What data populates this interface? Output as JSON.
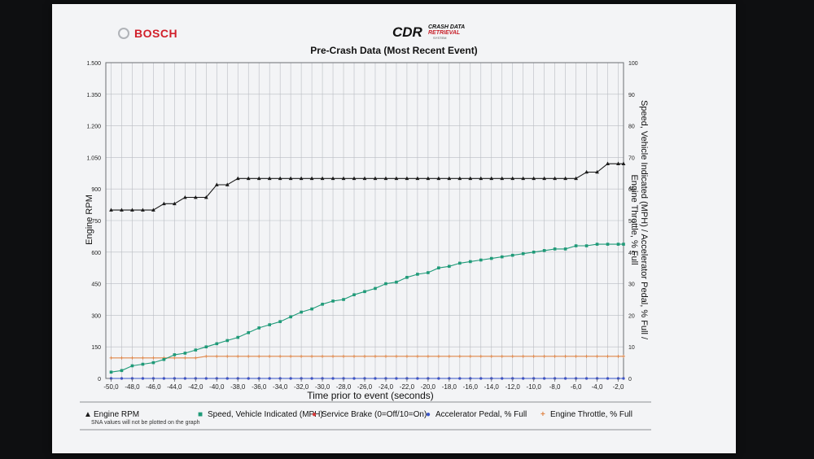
{
  "branding": {
    "bosch": "BOSCH",
    "cdr_logo": "CDR",
    "cdr_line1": "CRASH DATA",
    "cdr_line2": "RETRIEVAL",
    "cdr_line3": "SYSTEM"
  },
  "footnote": "SNA values will not be plotted on the graph",
  "colors": {
    "rpm": "#1a1a1a",
    "speed": "#1f9a78",
    "brake": "#d63a3a",
    "accel": "#3a56c8",
    "throttle": "#e0874a",
    "grid": "#b9bcc2",
    "paper": "#f3f4f6"
  },
  "chart_data": {
    "type": "line",
    "title": "Pre-Crash Data (Most Recent Event)",
    "xlabel": "Time prior to event (seconds)",
    "ylabel_left": "Engine RPM",
    "ylabel_right_line1": "Speed, Vehicle Indicated (MPH) / Accelerator Pedal, % Full /",
    "ylabel_right_line2": "Engine Throttle, % Full",
    "xlim": [
      -50.5,
      -1.5
    ],
    "ylim_left": [
      0,
      1500
    ],
    "ylim_right": [
      0,
      100
    ],
    "x_ticks": [
      -50,
      -48,
      -46,
      -44,
      -42,
      -40,
      -38,
      -36,
      -34,
      -32,
      -30,
      -28,
      -26,
      -24,
      -22,
      -20,
      -18,
      -16,
      -14,
      -12,
      -10,
      -8,
      -6,
      -4,
      -2
    ],
    "x_tick_labels": [
      "-50,0",
      "-48,0",
      "-46,0",
      "-44,0",
      "-42,0",
      "-40,0",
      "-38,0",
      "-36,0",
      "-34,0",
      "-32,0",
      "-30,0",
      "-28,0",
      "-26,0",
      "-24,0",
      "-22,0",
      "-20,0",
      "-18,0",
      "-16,0",
      "-14,0",
      "-12,0",
      "-10,0",
      "-8,0",
      "-6,0",
      "-4,0",
      "-2,0"
    ],
    "y_left_ticks": [
      0,
      150,
      300,
      450,
      600,
      750,
      900,
      1050,
      1200,
      1350,
      1500
    ],
    "y_left_tick_labels": [
      "0",
      "150",
      "300",
      "450",
      "600",
      "750",
      "900",
      "1.050",
      "1.200",
      "1.350",
      "1.500"
    ],
    "y_right_ticks": [
      0,
      10,
      20,
      30,
      40,
      50,
      60,
      70,
      80,
      90,
      100
    ],
    "y_right_tick_labels": [
      "0",
      "10",
      "20",
      "30",
      "40",
      "50",
      "60",
      "70",
      "80",
      "90",
      "100"
    ],
    "grid": true,
    "legend_position": "bottom",
    "x": [
      -50,
      -49,
      -48,
      -47,
      -46,
      -45,
      -44,
      -43,
      -42,
      -41,
      -40,
      -39,
      -38,
      -37,
      -36,
      -35,
      -34,
      -33,
      -32,
      -31,
      -30,
      -29,
      -28,
      -27,
      -26,
      -25,
      -24,
      -23,
      -22,
      -21,
      -20,
      -19,
      -18,
      -17,
      -16,
      -15,
      -14,
      -13,
      -12,
      -11,
      -10,
      -9,
      -8,
      -7,
      -6,
      -5,
      -4,
      -3,
      -2,
      -1.5
    ],
    "series": [
      {
        "name": "Engine RPM",
        "axis": "left",
        "marker": "triangle",
        "values": [
          800,
          800,
          800,
          800,
          800,
          830,
          830,
          860,
          860,
          860,
          920,
          920,
          950,
          950,
          950,
          950,
          950,
          950,
          950,
          950,
          950,
          950,
          950,
          950,
          950,
          950,
          950,
          950,
          950,
          950,
          950,
          950,
          950,
          950,
          950,
          950,
          950,
          950,
          950,
          950,
          950,
          950,
          950,
          950,
          950,
          980,
          980,
          1020,
          1020,
          1020
        ]
      },
      {
        "name": "Speed, Vehicle Indicated (MPH)",
        "axis": "right",
        "marker": "square",
        "values": [
          2,
          2.5,
          4,
          4.5,
          5,
          6,
          7.5,
          8,
          9,
          10,
          11,
          12,
          13,
          14.5,
          16,
          17,
          18,
          19.5,
          21,
          22,
          23.5,
          24.5,
          25,
          26.5,
          27.5,
          28.5,
          30,
          30.5,
          32,
          33,
          33.5,
          35,
          35.5,
          36.5,
          37,
          37.5,
          38,
          38.5,
          39,
          39.5,
          40,
          40.5,
          41,
          41,
          42,
          42,
          42.5,
          42.5,
          42.5,
          42.5
        ]
      },
      {
        "name": "Service Brake (0=Off/10=On)",
        "axis": "right",
        "marker": "circle",
        "values": [
          0,
          0,
          0,
          0,
          0,
          0,
          0,
          0,
          0,
          0,
          0,
          0,
          0,
          0,
          0,
          0,
          0,
          0,
          0,
          0,
          0,
          0,
          0,
          0,
          0,
          0,
          0,
          0,
          0,
          0,
          0,
          0,
          0,
          0,
          0,
          0,
          0,
          0,
          0,
          0,
          0,
          0,
          0,
          0,
          0,
          0,
          0,
          0,
          0,
          0
        ]
      },
      {
        "name": "Accelerator Pedal, % Full",
        "axis": "right",
        "marker": "circle",
        "values": [
          0,
          0,
          0,
          0,
          0,
          0,
          0,
          0,
          0,
          0,
          0,
          0,
          0,
          0,
          0,
          0,
          0,
          0,
          0,
          0,
          0,
          0,
          0,
          0,
          0,
          0,
          0,
          0,
          0,
          0,
          0,
          0,
          0,
          0,
          0,
          0,
          0,
          0,
          0,
          0,
          0,
          0,
          0,
          0,
          0,
          0,
          0,
          0,
          0,
          0
        ]
      },
      {
        "name": "Engine Throttle, % Full",
        "axis": "right",
        "marker": "plus",
        "values": [
          6.5,
          6.5,
          6.5,
          6.5,
          6.5,
          6.5,
          6.5,
          6.5,
          6.5,
          7,
          7,
          7,
          7,
          7,
          7,
          7,
          7,
          7,
          7,
          7,
          7,
          7,
          7,
          7,
          7,
          7,
          7,
          7,
          7,
          7,
          7,
          7,
          7,
          7,
          7,
          7,
          7,
          7,
          7,
          7,
          7,
          7,
          7,
          7,
          7,
          7,
          7,
          7,
          7,
          7
        ]
      }
    ],
    "legend": [
      {
        "label": "Engine RPM",
        "symbol": "▲",
        "color": "#1a1a1a"
      },
      {
        "label": "Speed, Vehicle Indicated (MPH)",
        "symbol": "■",
        "color": "#1f9a78"
      },
      {
        "label": "Service Brake (0=Off/10=On)",
        "symbol": "●",
        "color": "#d63a3a"
      },
      {
        "label": "Accelerator Pedal, % Full",
        "symbol": "●",
        "color": "#3a56c8"
      },
      {
        "label": "Engine Throttle, % Full",
        "symbol": "+",
        "color": "#e0874a"
      }
    ]
  }
}
